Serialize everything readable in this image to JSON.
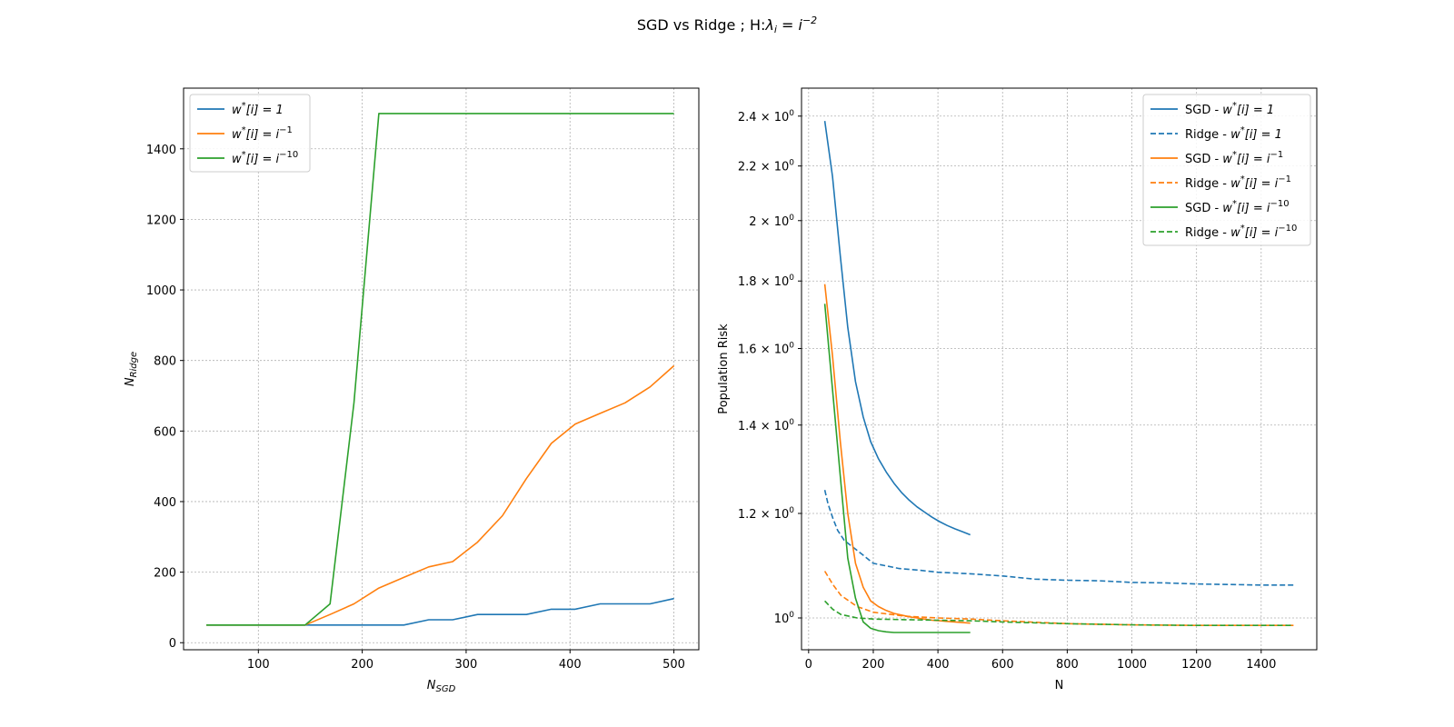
{
  "figure": {
    "title": "SGD vs Ridge ; H:"
  },
  "chart_data": [
    {
      "type": "line",
      "xlabel_base": "N",
      "xlabel_sub": "SGD",
      "ylabel_base": "N",
      "ylabel_sub": "Ridge",
      "xlim": [
        28,
        524
      ],
      "ylim": [
        -20,
        1572
      ],
      "xticks": [
        100,
        200,
        300,
        400,
        500
      ],
      "yticks": [
        0,
        200,
        400,
        600,
        800,
        1000,
        1200,
        1400
      ],
      "grid": true,
      "legend_position": "upper left",
      "series": [
        {
          "name": "w*[i] = 1",
          "color": "#1f77b4",
          "style": "solid",
          "x": [
            50,
            74,
            98,
            121,
            145,
            169,
            192,
            216,
            240,
            264,
            287,
            311,
            335,
            358,
            382,
            405,
            429,
            453,
            477,
            500
          ],
          "y": [
            50,
            50,
            50,
            50,
            50,
            50,
            50,
            50,
            50,
            65,
            65,
            80,
            80,
            80,
            95,
            95,
            110,
            110,
            110,
            125
          ]
        },
        {
          "name": "w*[i] = i^-1",
          "color": "#ff7f0e",
          "style": "solid",
          "x": [
            50,
            74,
            98,
            121,
            145,
            169,
            192,
            216,
            240,
            264,
            287,
            311,
            335,
            358,
            382,
            405,
            429,
            453,
            477,
            500
          ],
          "y": [
            50,
            50,
            50,
            50,
            50,
            80,
            110,
            155,
            185,
            215,
            230,
            285,
            360,
            465,
            565,
            620,
            650,
            680,
            725,
            785
          ]
        },
        {
          "name": "w*[i] = i^-10",
          "color": "#2ca02c",
          "style": "solid",
          "x": [
            50,
            74,
            98,
            121,
            145,
            169,
            192,
            216,
            240,
            264,
            287,
            311,
            335,
            358,
            382,
            405,
            429,
            453,
            477,
            500
          ],
          "y": [
            50,
            50,
            50,
            50,
            50,
            110,
            680,
            1500,
            1500,
            1500,
            1500,
            1500,
            1500,
            1500,
            1500,
            1500,
            1500,
            1500,
            1500,
            1500
          ]
        }
      ]
    },
    {
      "type": "line",
      "xlabel": "N",
      "ylabel": "Population Risk",
      "yscale": "log",
      "xlim": [
        -22,
        1572
      ],
      "ylim": [
        0.946,
        2.52
      ],
      "xticks": [
        0,
        200,
        400,
        600,
        800,
        1000,
        1200,
        1400
      ],
      "yticks": [
        1.0,
        1.2,
        1.4,
        1.6,
        1.8,
        2.0,
        2.2,
        2.4
      ],
      "grid": true,
      "legend_position": "upper right",
      "series": [
        {
          "name": "SGD - w*[i] = 1",
          "color": "#1f77b4",
          "style": "solid",
          "x": [
            50,
            74,
            98,
            121,
            145,
            169,
            192,
            216,
            240,
            264,
            287,
            311,
            335,
            358,
            382,
            405,
            429,
            453,
            477,
            500
          ],
          "y": [
            2.38,
            2.16,
            1.88,
            1.66,
            1.51,
            1.42,
            1.36,
            1.32,
            1.29,
            1.265,
            1.245,
            1.228,
            1.214,
            1.203,
            1.192,
            1.183,
            1.175,
            1.168,
            1.162,
            1.156
          ]
        },
        {
          "name": "Ridge - w*[i] = 1",
          "color": "#1f77b4",
          "style": "dashed",
          "x": [
            50,
            60,
            75,
            90,
            110,
            140,
            170,
            200,
            240,
            280,
            340,
            400,
            500,
            600,
            700,
            800,
            900,
            1000,
            1100,
            1200,
            1300,
            1400,
            1500
          ],
          "y": [
            1.25,
            1.22,
            1.19,
            1.165,
            1.145,
            1.13,
            1.115,
            1.1,
            1.095,
            1.09,
            1.087,
            1.083,
            1.08,
            1.076,
            1.07,
            1.068,
            1.067,
            1.064,
            1.063,
            1.061,
            1.06,
            1.059,
            1.059
          ]
        },
        {
          "name": "SGD - w*[i] = i^-1",
          "color": "#ff7f0e",
          "style": "solid",
          "x": [
            50,
            74,
            98,
            121,
            145,
            169,
            192,
            216,
            240,
            264,
            287,
            311,
            335,
            358,
            382,
            405,
            429,
            453,
            477,
            500
          ],
          "y": [
            1.79,
            1.58,
            1.36,
            1.2,
            1.1,
            1.055,
            1.03,
            1.02,
            1.013,
            1.008,
            1.005,
            1.002,
            1.0,
            0.998,
            0.996,
            0.995,
            0.994,
            0.993,
            0.992,
            0.991
          ]
        },
        {
          "name": "Ridge - w*[i] = i^-1",
          "color": "#ff7f0e",
          "style": "dashed",
          "x": [
            50,
            75,
            100,
            150,
            200,
            300,
            400,
            500,
            600,
            800,
            1000,
            1200,
            1400,
            1500
          ],
          "y": [
            1.085,
            1.06,
            1.04,
            1.02,
            1.01,
            1.003,
            1.0,
            0.998,
            0.995,
            0.99,
            0.988,
            0.987,
            0.987,
            0.987
          ]
        },
        {
          "name": "SGD - w*[i] = i^-10",
          "color": "#2ca02c",
          "style": "solid",
          "x": [
            50,
            74,
            98,
            121,
            145,
            169,
            192,
            216,
            240,
            264,
            287,
            311,
            335,
            358,
            382,
            405,
            429,
            453,
            477,
            500
          ],
          "y": [
            1.73,
            1.49,
            1.28,
            1.11,
            1.035,
            0.993,
            0.982,
            0.978,
            0.976,
            0.975,
            0.975,
            0.975,
            0.975,
            0.975,
            0.975,
            0.975,
            0.975,
            0.975,
            0.975,
            0.975
          ]
        },
        {
          "name": "Ridge - w*[i] = i^-10",
          "color": "#2ca02c",
          "style": "dashed",
          "x": [
            50,
            75,
            100,
            150,
            200,
            300,
            400,
            500,
            600,
            800,
            1000,
            1200,
            1400,
            1500
          ],
          "y": [
            1.03,
            1.015,
            1.006,
            1.0,
            0.998,
            0.997,
            0.996,
            0.995,
            0.993,
            0.99,
            0.988,
            0.987,
            0.987,
            0.987
          ]
        }
      ]
    }
  ]
}
